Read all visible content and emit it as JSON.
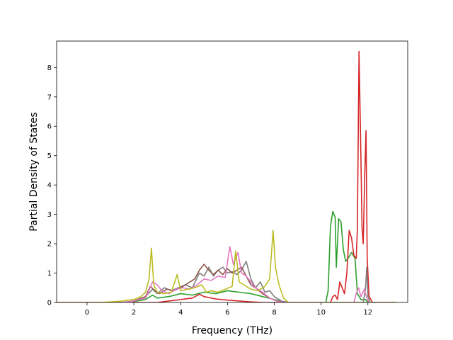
{
  "chart_data": {
    "type": "line",
    "title": "",
    "xlabel": "Frequency (THz)",
    "ylabel": "Partial Density of States",
    "xlim": [
      -1.3,
      13.7
    ],
    "ylim": [
      0,
      8.9
    ],
    "xticks": [
      0,
      2,
      4,
      6,
      8,
      10,
      12
    ],
    "yticks": [
      0,
      1,
      2,
      3,
      4,
      5,
      6,
      7,
      8
    ],
    "grid": false,
    "legend": "none",
    "series": [
      {
        "color": "#2ca02c",
        "points": [
          [
            -1.3,
            0
          ],
          [
            1.5,
            0
          ],
          [
            2.0,
            0.03
          ],
          [
            2.5,
            0.1
          ],
          [
            2.8,
            0.25
          ],
          [
            3.0,
            0.15
          ],
          [
            3.5,
            0.2
          ],
          [
            4.0,
            0.3
          ],
          [
            4.5,
            0.25
          ],
          [
            5.0,
            0.35
          ],
          [
            5.5,
            0.3
          ],
          [
            6.0,
            0.4
          ],
          [
            6.5,
            0.35
          ],
          [
            7.0,
            0.3
          ],
          [
            7.5,
            0.2
          ],
          [
            8.0,
            0.1
          ],
          [
            8.5,
            0
          ],
          [
            10.2,
            0
          ],
          [
            10.3,
            0.4
          ],
          [
            10.4,
            2.6
          ],
          [
            10.5,
            3.1
          ],
          [
            10.6,
            2.9
          ],
          [
            10.65,
            1.2
          ],
          [
            10.75,
            2.85
          ],
          [
            10.85,
            2.75
          ],
          [
            10.95,
            1.8
          ],
          [
            11.05,
            1.4
          ],
          [
            11.15,
            1.5
          ],
          [
            11.3,
            1.7
          ],
          [
            11.45,
            1.5
          ],
          [
            11.55,
            0.3
          ],
          [
            11.7,
            0.1
          ],
          [
            11.9,
            0.1
          ],
          [
            12.0,
            0
          ],
          [
            13.2,
            0
          ]
        ]
      },
      {
        "color": "#d62728",
        "points": [
          [
            -1.3,
            0
          ],
          [
            3.0,
            0
          ],
          [
            3.5,
            0.05
          ],
          [
            4.0,
            0.1
          ],
          [
            4.5,
            0.15
          ],
          [
            4.8,
            0.28
          ],
          [
            5.0,
            0.2
          ],
          [
            5.5,
            0.12
          ],
          [
            6.0,
            0.08
          ],
          [
            6.5,
            0.05
          ],
          [
            7.0,
            0.02
          ],
          [
            7.5,
            0
          ],
          [
            10.4,
            0
          ],
          [
            10.5,
            0.2
          ],
          [
            10.6,
            0.25
          ],
          [
            10.7,
            0.1
          ],
          [
            10.8,
            0.7
          ],
          [
            10.9,
            0.5
          ],
          [
            11.0,
            0.3
          ],
          [
            11.1,
            1.0
          ],
          [
            11.2,
            2.45
          ],
          [
            11.3,
            2.2
          ],
          [
            11.4,
            1.6
          ],
          [
            11.5,
            1.5
          ],
          [
            11.55,
            2.5
          ],
          [
            11.62,
            8.55
          ],
          [
            11.7,
            5.0
          ],
          [
            11.75,
            2.5
          ],
          [
            11.8,
            2.0
          ],
          [
            11.87,
            4.5
          ],
          [
            11.92,
            5.85
          ],
          [
            11.97,
            1.5
          ],
          [
            12.05,
            0.2
          ],
          [
            12.2,
            0
          ],
          [
            13.2,
            0
          ]
        ]
      },
      {
        "color": "#7f7f7f",
        "points": [
          [
            -1.3,
            0
          ],
          [
            1.5,
            0
          ],
          [
            2.0,
            0.05
          ],
          [
            2.5,
            0.2
          ],
          [
            2.8,
            0.45
          ],
          [
            3.0,
            0.3
          ],
          [
            3.3,
            0.5
          ],
          [
            3.6,
            0.4
          ],
          [
            3.9,
            0.5
          ],
          [
            4.2,
            0.6
          ],
          [
            4.5,
            0.5
          ],
          [
            4.8,
            1.0
          ],
          [
            5.0,
            0.9
          ],
          [
            5.2,
            1.2
          ],
          [
            5.4,
            0.9
          ],
          [
            5.6,
            1.1
          ],
          [
            5.8,
            1.2
          ],
          [
            6.0,
            1.0
          ],
          [
            6.2,
            1.05
          ],
          [
            6.4,
            0.95
          ],
          [
            6.6,
            1.1
          ],
          [
            6.8,
            1.4
          ],
          [
            7.0,
            0.8
          ],
          [
            7.2,
            0.5
          ],
          [
            7.4,
            0.7
          ],
          [
            7.6,
            0.35
          ],
          [
            7.8,
            0.4
          ],
          [
            8.0,
            0.2
          ],
          [
            8.3,
            0.05
          ],
          [
            8.6,
            0
          ],
          [
            11.8,
            0
          ],
          [
            11.9,
            0.5
          ],
          [
            11.95,
            1.2
          ],
          [
            12.0,
            0.2
          ],
          [
            12.1,
            0
          ],
          [
            13.2,
            0
          ]
        ]
      },
      {
        "color": "#8c564b",
        "points": [
          [
            -1.3,
            0
          ],
          [
            1.5,
            0
          ],
          [
            2.0,
            0.05
          ],
          [
            2.5,
            0.2
          ],
          [
            2.7,
            0.55
          ],
          [
            2.9,
            0.4
          ],
          [
            3.1,
            0.3
          ],
          [
            3.4,
            0.45
          ],
          [
            3.7,
            0.4
          ],
          [
            4.0,
            0.5
          ],
          [
            4.3,
            0.65
          ],
          [
            4.6,
            0.8
          ],
          [
            4.8,
            1.1
          ],
          [
            5.0,
            1.3
          ],
          [
            5.2,
            1.1
          ],
          [
            5.4,
            0.95
          ],
          [
            5.6,
            1.1
          ],
          [
            5.8,
            0.95
          ],
          [
            6.0,
            1.15
          ],
          [
            6.2,
            1.0
          ],
          [
            6.4,
            1.1
          ],
          [
            6.6,
            1.2
          ],
          [
            6.8,
            0.9
          ],
          [
            7.0,
            0.6
          ],
          [
            7.2,
            0.5
          ],
          [
            7.5,
            0.3
          ],
          [
            7.8,
            0.15
          ],
          [
            8.1,
            0.05
          ],
          [
            8.4,
            0
          ],
          [
            13.2,
            0
          ]
        ]
      },
      {
        "color": "#e377c2",
        "points": [
          [
            -1.3,
            0
          ],
          [
            1.5,
            0
          ],
          [
            2.0,
            0.05
          ],
          [
            2.5,
            0.15
          ],
          [
            2.8,
            0.7
          ],
          [
            3.0,
            0.6
          ],
          [
            3.2,
            0.4
          ],
          [
            3.5,
            0.3
          ],
          [
            3.8,
            0.45
          ],
          [
            4.1,
            0.5
          ],
          [
            4.4,
            0.45
          ],
          [
            4.7,
            0.6
          ],
          [
            5.0,
            0.8
          ],
          [
            5.3,
            0.75
          ],
          [
            5.6,
            0.9
          ],
          [
            5.9,
            0.85
          ],
          [
            6.1,
            1.9
          ],
          [
            6.25,
            1.3
          ],
          [
            6.45,
            1.7
          ],
          [
            6.6,
            1.0
          ],
          [
            6.8,
            0.9
          ],
          [
            7.0,
            0.7
          ],
          [
            7.2,
            0.5
          ],
          [
            7.5,
            0.35
          ],
          [
            7.8,
            0.15
          ],
          [
            8.1,
            0.05
          ],
          [
            8.4,
            0
          ],
          [
            11.4,
            0
          ],
          [
            11.5,
            0.3
          ],
          [
            11.6,
            0.5
          ],
          [
            11.7,
            0.2
          ],
          [
            11.85,
            0.45
          ],
          [
            11.95,
            0.15
          ],
          [
            12.05,
            0
          ],
          [
            13.2,
            0
          ]
        ]
      },
      {
        "color": "#bcbd22",
        "points": [
          [
            -1.3,
            0
          ],
          [
            0.5,
            0
          ],
          [
            1.0,
            0.02
          ],
          [
            1.5,
            0.05
          ],
          [
            2.0,
            0.1
          ],
          [
            2.3,
            0.2
          ],
          [
            2.5,
            0.35
          ],
          [
            2.65,
            0.8
          ],
          [
            2.75,
            1.85
          ],
          [
            2.85,
            0.6
          ],
          [
            3.0,
            0.35
          ],
          [
            3.3,
            0.3
          ],
          [
            3.6,
            0.35
          ],
          [
            3.85,
            0.95
          ],
          [
            4.0,
            0.4
          ],
          [
            4.3,
            0.45
          ],
          [
            4.6,
            0.5
          ],
          [
            4.9,
            0.6
          ],
          [
            5.1,
            0.35
          ],
          [
            5.3,
            0.4
          ],
          [
            5.6,
            0.35
          ],
          [
            5.9,
            0.45
          ],
          [
            6.2,
            0.55
          ],
          [
            6.35,
            1.75
          ],
          [
            6.5,
            0.7
          ],
          [
            6.7,
            0.6
          ],
          [
            7.0,
            0.45
          ],
          [
            7.3,
            0.4
          ],
          [
            7.6,
            0.55
          ],
          [
            7.8,
            0.8
          ],
          [
            7.95,
            2.45
          ],
          [
            8.05,
            1.2
          ],
          [
            8.2,
            0.6
          ],
          [
            8.4,
            0.15
          ],
          [
            8.6,
            0
          ],
          [
            13.2,
            0
          ]
        ]
      }
    ]
  }
}
